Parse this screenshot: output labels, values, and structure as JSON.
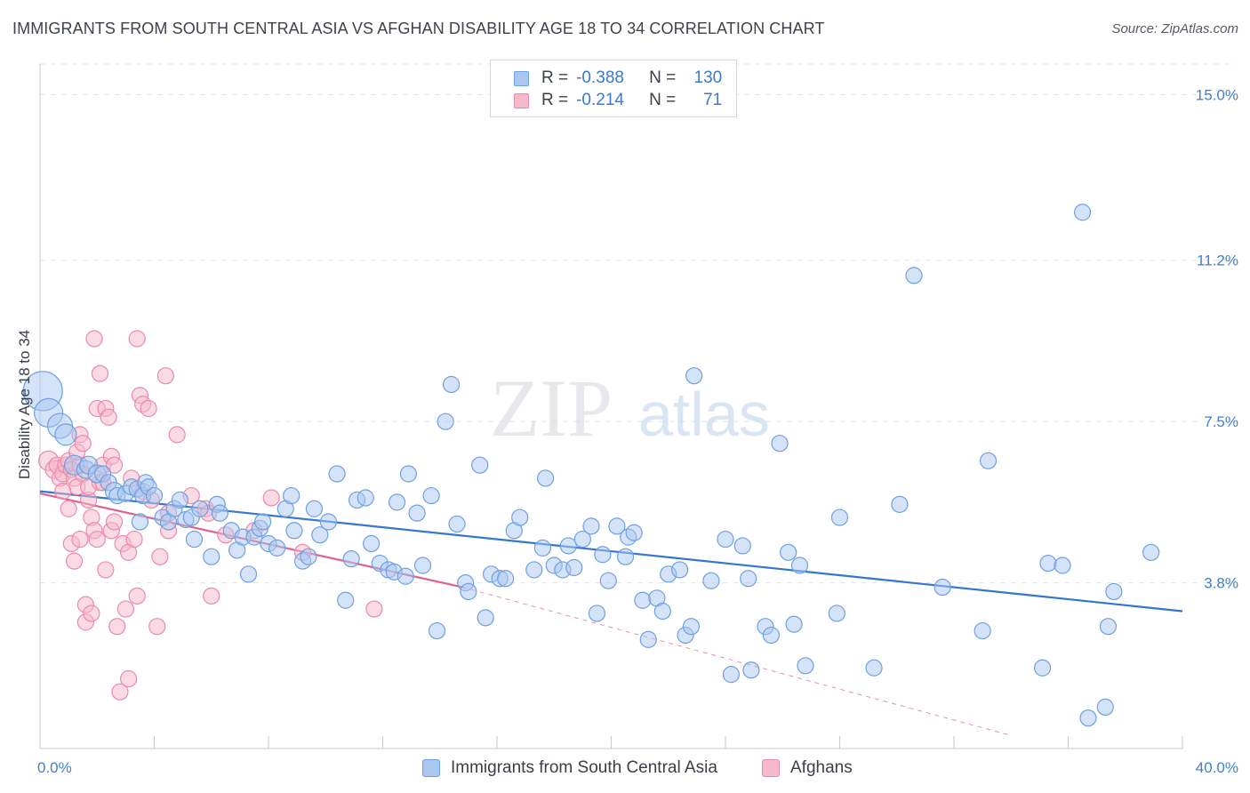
{
  "header": {
    "title": "IMMIGRANTS FROM SOUTH CENTRAL ASIA VS AFGHAN DISABILITY AGE 18 TO 34 CORRELATION CHART",
    "source": "Source: ZipAtlas.com"
  },
  "watermark": {
    "zip": "ZIP",
    "atlas": "atlas"
  },
  "legend_top": {
    "rows": [
      {
        "r_label": "R =",
        "r_value": "-0.388",
        "n_label": "N =",
        "n_value": "130"
      },
      {
        "r_label": "R =",
        "r_value": "-0.214",
        "n_label": "N =",
        "n_value": "71"
      }
    ]
  },
  "colors": {
    "blue_fill": "#aac8ef",
    "blue_stroke": "#6fa0e0",
    "blue_line": "#3577cf",
    "pink_fill": "#f6b8cb",
    "pink_stroke": "#ec8aa8",
    "pink_line": "#e0608f",
    "tick_text": "#3f7fd1",
    "grid": "#dfe3e8"
  },
  "chart_data": {
    "type": "scatter",
    "title": "IMMIGRANTS FROM SOUTH CENTRAL ASIA VS AFGHAN DISABILITY AGE 18 TO 34 CORRELATION CHART",
    "ylabel": "Disability Age 18 to 34",
    "xlim": [
      0,
      40
    ],
    "ylim": [
      0,
      15.7
    ],
    "x_tick_labels": [
      "0.0%",
      "40.0%"
    ],
    "y_ticks": [
      3.8,
      7.5,
      11.2,
      15.0
    ],
    "y_tick_labels": [
      "3.8%",
      "7.5%",
      "11.2%",
      "15.0%"
    ],
    "grid": "horizontal-dashed",
    "legend_position": "bottom",
    "series": [
      {
        "name": "Immigrants from South Central Asia",
        "color": "#aac8ef",
        "trend": {
          "x": [
            0,
            40
          ],
          "y": [
            5.9,
            3.15
          ]
        },
        "points": [
          [
            0.1,
            8.2,
            22
          ],
          [
            0.3,
            7.7,
            16
          ],
          [
            0.7,
            7.4,
            14
          ],
          [
            0.9,
            7.2,
            12
          ],
          [
            1.2,
            6.5,
            11
          ],
          [
            1.6,
            6.4,
            10
          ],
          [
            1.7,
            6.5,
            10
          ],
          [
            2.0,
            6.3,
            10
          ],
          [
            2.2,
            6.3,
            9
          ],
          [
            2.4,
            6.1,
            9
          ],
          [
            2.6,
            5.9,
            10
          ],
          [
            2.7,
            5.8,
            9
          ],
          [
            3.0,
            5.85,
            9
          ],
          [
            3.2,
            6.0,
            9
          ],
          [
            3.4,
            5.95,
            9
          ],
          [
            3.5,
            5.2,
            9
          ],
          [
            3.6,
            5.8,
            9
          ],
          [
            3.7,
            6.1,
            9
          ],
          [
            3.8,
            6.0,
            9
          ],
          [
            4.0,
            5.8,
            9
          ],
          [
            4.3,
            5.3,
            9
          ],
          [
            4.5,
            5.2,
            9
          ],
          [
            4.7,
            5.5,
            9
          ],
          [
            4.9,
            5.7,
            9
          ],
          [
            5.1,
            5.25,
            9
          ],
          [
            5.3,
            5.3,
            9
          ],
          [
            5.6,
            5.5,
            9
          ],
          [
            5.4,
            4.8,
            9
          ],
          [
            6.0,
            4.4,
            9
          ],
          [
            6.2,
            5.6,
            9
          ],
          [
            6.3,
            5.4,
            9
          ],
          [
            6.7,
            5.0,
            9
          ],
          [
            6.9,
            4.55,
            9
          ],
          [
            7.1,
            4.85,
            9
          ],
          [
            7.3,
            4.0,
            9
          ],
          [
            7.5,
            4.85,
            9
          ],
          [
            7.7,
            5.05,
            9
          ],
          [
            7.8,
            5.2,
            9
          ],
          [
            8.0,
            4.7,
            9
          ],
          [
            8.3,
            4.6,
            9
          ],
          [
            8.6,
            5.5,
            9
          ],
          [
            8.8,
            5.8,
            9
          ],
          [
            8.9,
            5.0,
            9
          ],
          [
            9.2,
            4.3,
            9
          ],
          [
            9.4,
            4.4,
            9
          ],
          [
            9.6,
            5.5,
            9
          ],
          [
            9.8,
            4.9,
            9
          ],
          [
            10.1,
            5.2,
            9
          ],
          [
            10.4,
            6.3,
            9
          ],
          [
            10.7,
            3.4,
            9
          ],
          [
            10.9,
            4.35,
            9
          ],
          [
            11.1,
            5.7,
            9
          ],
          [
            11.4,
            5.75,
            9
          ],
          [
            11.6,
            4.7,
            9
          ],
          [
            11.9,
            4.25,
            9
          ],
          [
            12.2,
            4.1,
            9
          ],
          [
            12.4,
            4.05,
            9
          ],
          [
            12.5,
            5.65,
            9
          ],
          [
            12.8,
            3.95,
            9
          ],
          [
            12.9,
            6.3,
            9
          ],
          [
            13.2,
            5.4,
            9
          ],
          [
            13.4,
            4.2,
            9
          ],
          [
            13.7,
            5.8,
            9
          ],
          [
            13.9,
            2.7,
            9
          ],
          [
            14.2,
            7.5,
            9
          ],
          [
            14.4,
            8.35,
            9
          ],
          [
            14.6,
            5.15,
            9
          ],
          [
            14.9,
            3.8,
            9
          ],
          [
            15.0,
            3.6,
            9
          ],
          [
            15.4,
            6.5,
            9
          ],
          [
            15.6,
            3.0,
            9
          ],
          [
            15.8,
            4.0,
            9
          ],
          [
            16.1,
            3.9,
            9
          ],
          [
            16.3,
            3.9,
            9
          ],
          [
            16.6,
            5.0,
            9
          ],
          [
            16.8,
            5.3,
            9
          ],
          [
            17.3,
            4.1,
            9
          ],
          [
            17.6,
            4.6,
            9
          ],
          [
            17.7,
            6.2,
            9
          ],
          [
            18.0,
            4.2,
            9
          ],
          [
            18.3,
            4.1,
            9
          ],
          [
            18.5,
            4.65,
            9
          ],
          [
            18.7,
            4.15,
            9
          ],
          [
            19.0,
            4.8,
            9
          ],
          [
            19.3,
            5.1,
            9
          ],
          [
            19.5,
            3.1,
            9
          ],
          [
            19.7,
            4.45,
            9
          ],
          [
            19.9,
            3.85,
            9
          ],
          [
            20.2,
            5.1,
            9
          ],
          [
            20.5,
            4.4,
            9
          ],
          [
            20.6,
            4.85,
            9
          ],
          [
            20.8,
            4.95,
            9
          ],
          [
            21.1,
            3.4,
            9
          ],
          [
            21.3,
            2.5,
            9
          ],
          [
            21.6,
            3.45,
            9
          ],
          [
            21.8,
            3.15,
            9
          ],
          [
            22.0,
            4.0,
            9
          ],
          [
            22.4,
            4.1,
            9
          ],
          [
            22.6,
            2.6,
            9
          ],
          [
            22.8,
            2.8,
            9
          ],
          [
            22.9,
            8.55,
            9
          ],
          [
            23.5,
            3.85,
            9
          ],
          [
            24.0,
            4.8,
            9
          ],
          [
            24.2,
            1.7,
            9
          ],
          [
            24.6,
            4.65,
            9
          ],
          [
            24.8,
            3.9,
            9
          ],
          [
            24.9,
            1.8,
            9
          ],
          [
            25.4,
            2.8,
            9
          ],
          [
            25.6,
            2.6,
            9
          ],
          [
            25.9,
            7.0,
            9
          ],
          [
            26.2,
            4.5,
            9
          ],
          [
            26.4,
            2.85,
            9
          ],
          [
            26.6,
            4.2,
            9
          ],
          [
            26.8,
            1.9,
            9
          ],
          [
            27.9,
            3.1,
            9
          ],
          [
            28.0,
            5.3,
            9
          ],
          [
            29.2,
            1.85,
            9
          ],
          [
            30.1,
            5.6,
            9
          ],
          [
            30.6,
            10.85,
            9
          ],
          [
            31.6,
            3.7,
            9
          ],
          [
            33.0,
            2.7,
            9
          ],
          [
            33.2,
            6.6,
            9
          ],
          [
            35.1,
            1.85,
            9
          ],
          [
            35.3,
            4.25,
            9
          ],
          [
            35.8,
            4.2,
            9
          ],
          [
            36.5,
            12.3,
            9
          ],
          [
            36.7,
            0.7,
            9
          ],
          [
            37.3,
            0.95,
            9
          ],
          [
            37.4,
            2.8,
            9
          ],
          [
            37.6,
            3.6,
            9
          ],
          [
            38.9,
            4.5,
            9
          ]
        ]
      },
      {
        "name": "Afghans",
        "color": "#f6b8cb",
        "trend": {
          "x": [
            0,
            14.8
          ],
          "y": [
            5.85,
            3.7
          ],
          "dashed_to": [
            34.0,
            0.3
          ]
        },
        "points": [
          [
            0.3,
            6.6,
            11
          ],
          [
            0.5,
            6.4,
            10
          ],
          [
            0.6,
            6.5,
            9
          ],
          [
            0.7,
            6.2,
            9
          ],
          [
            0.8,
            6.3,
            9
          ],
          [
            0.9,
            6.5,
            9
          ],
          [
            1.0,
            6.6,
            9
          ],
          [
            1.1,
            6.4,
            9
          ],
          [
            1.2,
            6.2,
            9
          ],
          [
            1.3,
            6.0,
            9
          ],
          [
            1.4,
            6.5,
            9
          ],
          [
            1.5,
            6.3,
            9
          ],
          [
            0.8,
            5.9,
            9
          ],
          [
            1.0,
            5.5,
            9
          ],
          [
            1.3,
            6.8,
            9
          ],
          [
            1.4,
            7.2,
            9
          ],
          [
            1.5,
            7.0,
            9
          ],
          [
            1.7,
            5.7,
            9
          ],
          [
            1.8,
            5.3,
            9
          ],
          [
            1.9,
            5.0,
            9
          ],
          [
            2.0,
            4.8,
            9
          ],
          [
            1.7,
            6.0,
            9
          ],
          [
            2.1,
            6.1,
            9
          ],
          [
            2.2,
            6.5,
            9
          ],
          [
            1.1,
            4.7,
            9
          ],
          [
            1.2,
            4.3,
            9
          ],
          [
            1.4,
            4.8,
            9
          ],
          [
            1.6,
            3.3,
            9
          ],
          [
            1.6,
            2.9,
            9
          ],
          [
            1.8,
            3.1,
            9
          ],
          [
            1.9,
            9.4,
            9
          ],
          [
            2.1,
            8.6,
            9
          ],
          [
            2.0,
            7.8,
            9
          ],
          [
            2.3,
            7.8,
            9
          ],
          [
            2.4,
            7.6,
            9
          ],
          [
            2.2,
            6.1,
            9
          ],
          [
            2.5,
            6.7,
            9
          ],
          [
            2.6,
            6.5,
            9
          ],
          [
            2.3,
            4.1,
            9
          ],
          [
            2.5,
            5.0,
            9
          ],
          [
            2.6,
            5.2,
            9
          ],
          [
            2.7,
            2.8,
            9
          ],
          [
            2.8,
            1.3,
            9
          ],
          [
            2.9,
            4.7,
            9
          ],
          [
            3.0,
            3.2,
            9
          ],
          [
            3.1,
            4.5,
            9
          ],
          [
            3.1,
            1.6,
            9
          ],
          [
            3.2,
            6.2,
            9
          ],
          [
            3.3,
            4.8,
            9
          ],
          [
            3.4,
            3.5,
            9
          ],
          [
            3.4,
            9.4,
            9
          ],
          [
            3.5,
            8.1,
            9
          ],
          [
            3.6,
            7.9,
            9
          ],
          [
            3.8,
            7.8,
            9
          ],
          [
            3.6,
            5.9,
            9
          ],
          [
            3.9,
            5.7,
            9
          ],
          [
            4.1,
            2.8,
            9
          ],
          [
            4.2,
            4.4,
            9
          ],
          [
            4.5,
            5.4,
            9
          ],
          [
            4.4,
            8.55,
            9
          ],
          [
            4.5,
            5.0,
            9
          ],
          [
            4.8,
            7.2,
            9
          ],
          [
            5.3,
            5.8,
            9
          ],
          [
            5.8,
            5.5,
            9
          ],
          [
            5.9,
            5.4,
            9
          ],
          [
            6.0,
            3.5,
            9
          ],
          [
            8.1,
            5.75,
            9
          ],
          [
            11.7,
            3.2,
            9
          ],
          [
            9.2,
            4.5,
            9
          ],
          [
            6.5,
            4.9,
            9
          ],
          [
            7.5,
            5.0,
            9
          ]
        ]
      }
    ]
  },
  "legend_bottom": {
    "items": [
      "Immigrants from South Central Asia",
      "Afghans"
    ]
  }
}
